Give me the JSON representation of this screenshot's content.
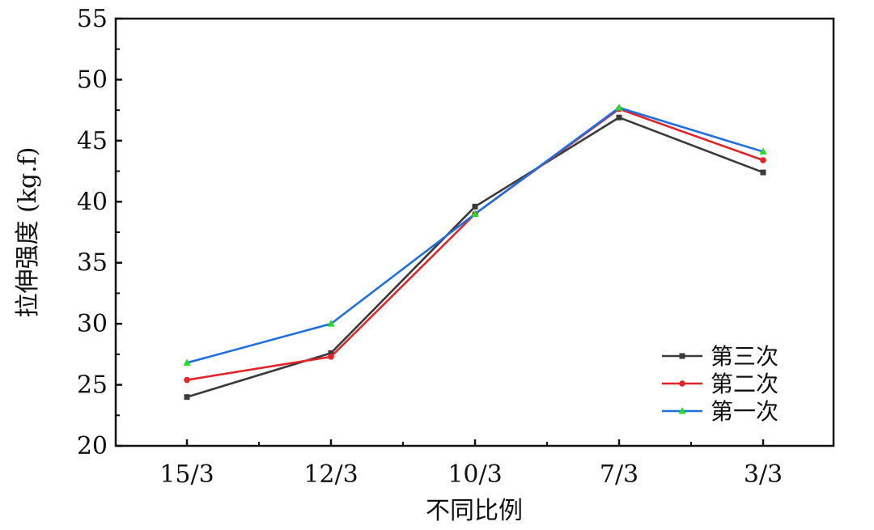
{
  "chart_data": {
    "type": "line",
    "title": "",
    "xlabel": "不同比例",
    "ylabel": "拉伸强度 (kg.f)",
    "categories": [
      "15/3",
      "12/3",
      "10/3",
      "7/3",
      "3/3"
    ],
    "ylim": [
      20,
      55
    ],
    "yticks": [
      20,
      25,
      30,
      35,
      40,
      45,
      50,
      55
    ],
    "grid": false,
    "legend_position": "bottom-right",
    "series": [
      {
        "name": "第三次",
        "color": "#3a3a3a",
        "marker": "square",
        "values": [
          24.0,
          27.6,
          39.6,
          46.9,
          42.4
        ]
      },
      {
        "name": "第二次",
        "color": "#e0262a",
        "marker": "circle",
        "values": [
          25.4,
          27.3,
          39.0,
          47.6,
          43.4
        ]
      },
      {
        "name": "第一次",
        "color": "#1f6fe0",
        "marker": "triangle",
        "marker_color": "#22dd22",
        "values": [
          26.8,
          30.0,
          39.0,
          47.7,
          44.1
        ]
      }
    ]
  }
}
